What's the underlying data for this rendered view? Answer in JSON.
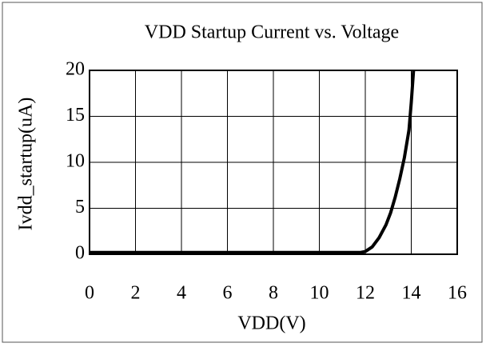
{
  "chart_data": {
    "type": "line",
    "title": "VDD Startup Current vs. Voltage",
    "x_label": "VDD(V)",
    "y_label": "Ivdd_startup(uA)",
    "x": [
      0,
      11.8,
      12,
      12.3,
      12.6,
      12.9,
      13.1,
      13.3,
      13.5,
      13.7,
      13.9,
      14.0,
      14.1
    ],
    "series": [
      {
        "color": "#000000",
        "values": [
          0.2,
          0.2,
          0.3,
          0.8,
          1.8,
          3.2,
          4.5,
          6.2,
          8.2,
          10.5,
          13.5,
          16.5,
          20
        ]
      }
    ],
    "xlim": [
      0,
      16
    ],
    "xticks": [
      0,
      2,
      4,
      6,
      8,
      10,
      12,
      14,
      16
    ],
    "ylim": [
      0,
      20
    ],
    "yticks": [
      0,
      5,
      10,
      15,
      20
    ],
    "grid": true
  }
}
